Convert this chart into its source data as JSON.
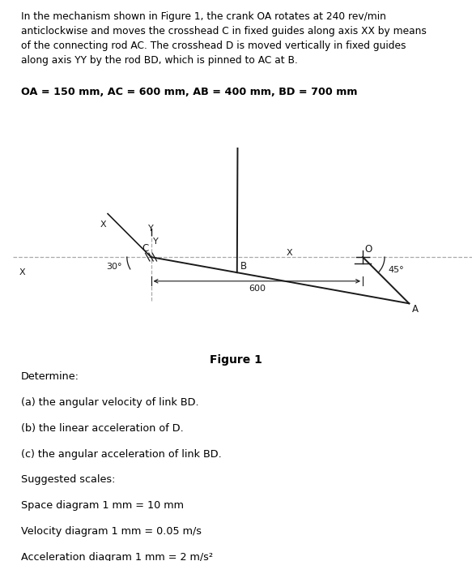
{
  "title_text": "In the mechanism shown in Figure 1, the crank OA rotates at 240 rev/min\nanticlockwise and moves the crosshead C in fixed guides along axis XX by means\nof the connecting rod AC. The crosshead D is moved vertically in fixed guides\nalong axis YY by the rod BD, which is pinned to AC at B.",
  "params_text": "OA = 150 mm, AC = 600 mm, AB = 400 mm, BD = 700 mm",
  "figure_label": "Figure 1",
  "determine_text": "Determine:",
  "items": [
    "(a) the angular velocity of link BD.",
    "(b) the linear acceleration of D.",
    "(c) the angular acceleration of link BD."
  ],
  "suggested_text": "Suggested scales:",
  "scales": [
    "Space diagram 1 mm = 10 mm",
    "Velocity diagram 1 mm = 0.05 m/s",
    "Acceleration diagram 1 mm = 2 m/s²"
  ],
  "bg_color": "#ffffff",
  "line_color": "#1a1a1a",
  "text_color": "#000000"
}
